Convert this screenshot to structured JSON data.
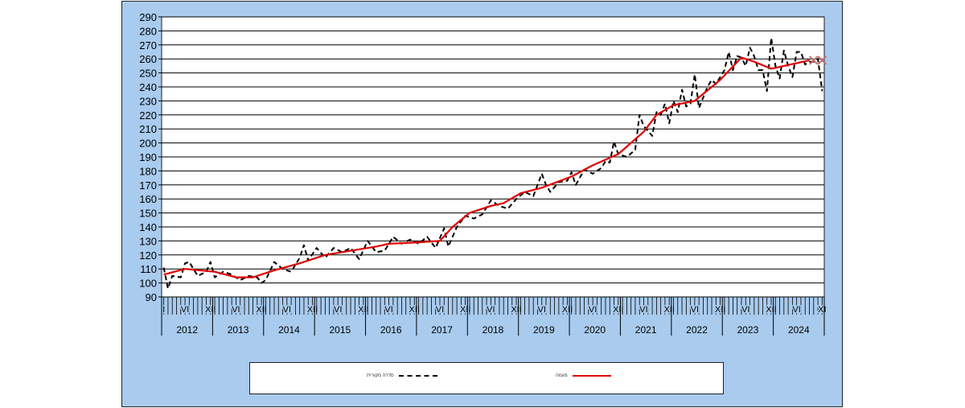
{
  "chart_data": {
    "type": "line",
    "title": "",
    "xlabel": "",
    "ylabel": "",
    "ylim": [
      90,
      290
    ],
    "yticks": [
      90,
      100,
      110,
      120,
      130,
      140,
      150,
      160,
      170,
      180,
      190,
      200,
      210,
      220,
      230,
      240,
      250,
      260,
      270,
      280,
      290
    ],
    "grid": true,
    "legend_position": "bottom",
    "x_years": [
      "2012",
      "2013",
      "2014",
      "2015",
      "2016",
      "2017",
      "2018",
      "2019",
      "2020",
      "2021",
      "2022",
      "2023",
      "2024"
    ],
    "month_tick_labels": {
      "I": "I",
      "VI": "VI",
      "XII": "XII",
      "XI": "XI"
    },
    "series": [
      {
        "name": "סדרה מקורית",
        "color": "#000000",
        "style": "dashed",
        "points": [
          [
            "2012-01",
            111
          ],
          [
            "2012-02",
            96
          ],
          [
            "2012-03",
            105
          ],
          [
            "2012-05",
            104
          ],
          [
            "2012-06",
            114
          ],
          [
            "2012-07",
            115
          ],
          [
            "2012-09",
            105
          ],
          [
            "2012-11",
            108
          ],
          [
            "2012-12",
            115
          ],
          [
            "2013-01",
            104
          ],
          [
            "2013-03",
            108
          ],
          [
            "2013-05",
            106
          ],
          [
            "2013-07",
            102
          ],
          [
            "2013-09",
            105
          ],
          [
            "2013-11",
            104
          ],
          [
            "2013-12",
            100
          ],
          [
            "2014-01",
            102
          ],
          [
            "2014-03",
            115
          ],
          [
            "2014-05",
            110
          ],
          [
            "2014-07",
            108
          ],
          [
            "2014-09",
            118
          ],
          [
            "2014-10",
            127
          ],
          [
            "2014-11",
            116
          ],
          [
            "2015-01",
            125
          ],
          [
            "2015-03",
            118
          ],
          [
            "2015-05",
            125
          ],
          [
            "2015-07",
            122
          ],
          [
            "2015-09",
            125
          ],
          [
            "2015-11",
            117
          ],
          [
            "2016-01",
            130
          ],
          [
            "2016-03",
            122
          ],
          [
            "2016-05",
            123
          ],
          [
            "2016-07",
            133
          ],
          [
            "2016-09",
            128
          ],
          [
            "2016-11",
            131
          ],
          [
            "2017-01",
            128
          ],
          [
            "2017-03",
            133
          ],
          [
            "2017-05",
            125
          ],
          [
            "2017-07",
            139
          ],
          [
            "2017-08",
            126
          ],
          [
            "2017-10",
            140
          ],
          [
            "2017-12",
            148
          ],
          [
            "2018-02",
            146
          ],
          [
            "2018-04",
            149
          ],
          [
            "2018-06",
            159
          ],
          [
            "2018-08",
            155
          ],
          [
            "2018-10",
            153
          ],
          [
            "2018-12",
            160
          ],
          [
            "2019-02",
            165
          ],
          [
            "2019-04",
            162
          ],
          [
            "2019-06",
            178
          ],
          [
            "2019-07",
            170
          ],
          [
            "2019-08",
            165
          ],
          [
            "2019-10",
            172
          ],
          [
            "2019-12",
            173
          ],
          [
            "2020-01",
            179
          ],
          [
            "2020-02",
            170
          ],
          [
            "2020-04",
            181
          ],
          [
            "2020-06",
            178
          ],
          [
            "2020-08",
            182
          ],
          [
            "2020-09",
            187
          ],
          [
            "2020-10",
            186
          ],
          [
            "2020-11",
            201
          ],
          [
            "2020-12",
            192
          ],
          [
            "2021-02",
            190
          ],
          [
            "2021-04",
            195
          ],
          [
            "2021-05",
            220
          ],
          [
            "2021-06",
            212
          ],
          [
            "2021-08",
            205
          ],
          [
            "2021-09",
            222
          ],
          [
            "2021-10",
            220
          ],
          [
            "2021-11",
            228
          ],
          [
            "2021-12",
            214
          ],
          [
            "2022-01",
            230
          ],
          [
            "2022-02",
            222
          ],
          [
            "2022-03",
            238
          ],
          [
            "2022-04",
            226
          ],
          [
            "2022-05",
            228
          ],
          [
            "2022-06",
            249
          ],
          [
            "2022-07",
            225
          ],
          [
            "2022-09",
            240
          ],
          [
            "2022-10",
            245
          ],
          [
            "2022-11",
            242
          ],
          [
            "2023-01",
            252
          ],
          [
            "2023-02",
            265
          ],
          [
            "2023-03",
            252
          ],
          [
            "2023-04",
            262
          ],
          [
            "2023-05",
            261
          ],
          [
            "2023-06",
            255
          ],
          [
            "2023-07",
            268
          ],
          [
            "2023-08",
            262
          ],
          [
            "2023-09",
            252
          ],
          [
            "2023-10",
            252
          ],
          [
            "2023-11",
            237
          ],
          [
            "2023-12",
            275
          ],
          [
            "2024-01",
            255
          ],
          [
            "2024-02",
            246
          ],
          [
            "2024-03",
            266
          ],
          [
            "2024-04",
            255
          ],
          [
            "2024-05",
            247
          ],
          [
            "2024-06",
            265
          ],
          [
            "2024-07",
            265
          ],
          [
            "2024-08",
            256
          ],
          [
            "2024-09",
            258
          ],
          [
            "2024-10",
            258
          ],
          [
            "2024-11",
            260
          ],
          [
            "2024-12",
            237
          ]
        ]
      },
      {
        "name": "מגמה",
        "color": "#e00000",
        "style": "solid",
        "points": [
          [
            "2012-01",
            106
          ],
          [
            "2012-06",
            110
          ],
          [
            "2013-01",
            108
          ],
          [
            "2013-06",
            104
          ],
          [
            "2013-10",
            104
          ],
          [
            "2014-03",
            109
          ],
          [
            "2014-09",
            114
          ],
          [
            "2015-03",
            120
          ],
          [
            "2015-09",
            123
          ],
          [
            "2016-03",
            126
          ],
          [
            "2016-06",
            128
          ],
          [
            "2017-01",
            129
          ],
          [
            "2017-06",
            130
          ],
          [
            "2017-09",
            140
          ],
          [
            "2018-01",
            150
          ],
          [
            "2018-06",
            155
          ],
          [
            "2018-09",
            157
          ],
          [
            "2019-01",
            164
          ],
          [
            "2019-06",
            168
          ],
          [
            "2020-01",
            176
          ],
          [
            "2020-06",
            184
          ],
          [
            "2020-12",
            192
          ],
          [
            "2021-06",
            208
          ],
          [
            "2021-09",
            220
          ],
          [
            "2022-01",
            227
          ],
          [
            "2022-06",
            230
          ],
          [
            "2022-12",
            245
          ],
          [
            "2023-05",
            261
          ],
          [
            "2023-08",
            258
          ],
          [
            "2023-12",
            253
          ],
          [
            "2024-06",
            257
          ],
          [
            "2024-09",
            259
          ]
        ],
        "forecast_markers": [
          [
            "2024-10",
            259
          ],
          [
            "2024-12",
            259
          ]
        ],
        "marker_color": "#c07070"
      }
    ]
  },
  "legend": {
    "original": "סדרה מקורית",
    "trend": "מגמה"
  }
}
